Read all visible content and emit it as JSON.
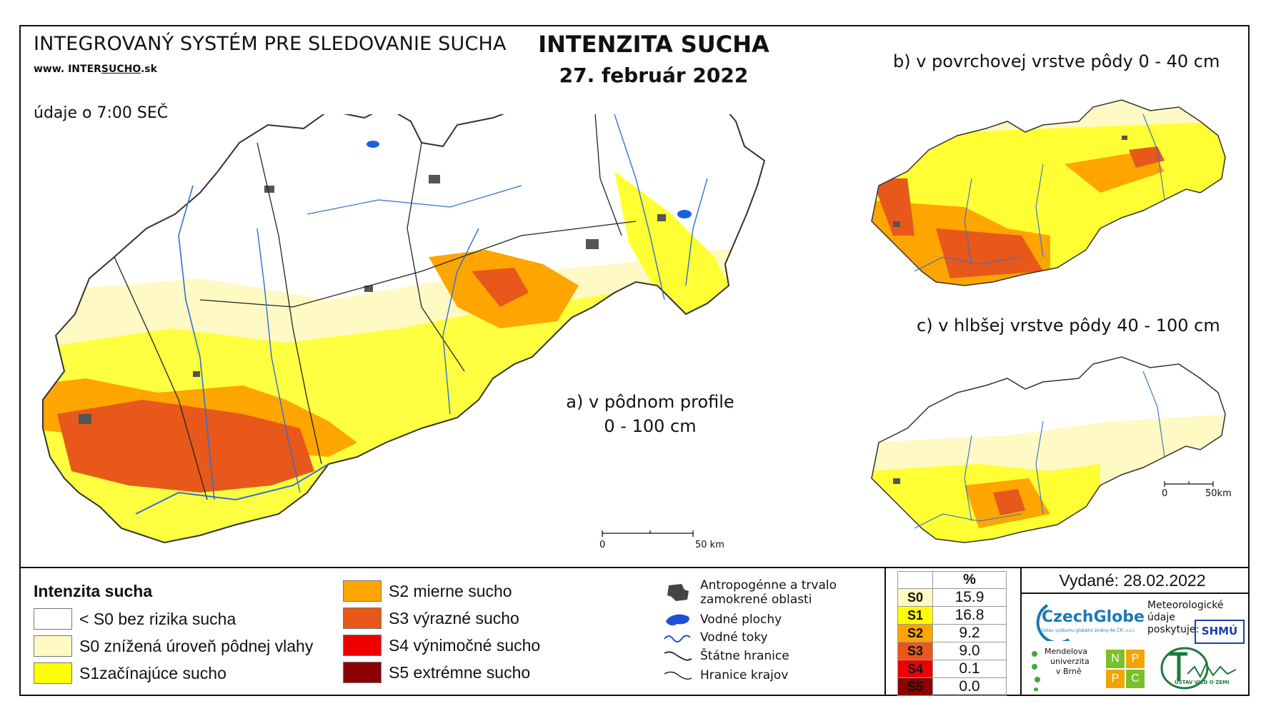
{
  "header": {
    "system_title": "INTEGROVANÝ SYSTÉM PRE SLEDOVANIE SUCHA",
    "url_prefix": "www. INTER",
    "url_mid": "SUCHO",
    "url_suffix": ".sk",
    "time_note": "údaje o 7:00 SEČ",
    "main_title": "INTENZITA SUCHA",
    "date": "27. február 2022"
  },
  "maps": {
    "a_label_line1": "a) v pôdnom profile",
    "a_label_line2": "0 - 100 cm",
    "b_label": "b) v povrchovej vrstve pôdy 0 - 40 cm",
    "c_label": "c) v hlbšej vrstve pôdy 40 - 100 cm",
    "scale_main_zero": "0",
    "scale_main_end": "50 km",
    "scale_small_zero": "0",
    "scale_small_end": "50km"
  },
  "legend": {
    "title": "Intenzita sucha",
    "items": [
      {
        "label": "< S0 bez rizika sucha",
        "color": "#ffffff"
      },
      {
        "label": "S0 znížená úroveň pôdnej vlahy",
        "color": "#fff9c4"
      },
      {
        "label": "S1začínajúce sucho",
        "color": "#ffff00"
      },
      {
        "label": "S2 mierne sucho",
        "color": "#ffa500"
      },
      {
        "label": "S3 výrazné sucho",
        "color": "#e8581a"
      },
      {
        "label": "S4 výnimočné sucho",
        "color": "#ee0000"
      },
      {
        "label": "S5 extrémne sucho",
        "color": "#8b0000"
      }
    ]
  },
  "symbols": [
    {
      "label_line1": "Antropogénne a trvalo",
      "label_line2": "zamokrené oblasti",
      "icon": "urban-area-icon"
    },
    {
      "label_line1": "Vodné plochy",
      "icon": "water-body-icon"
    },
    {
      "label_line1": "Vodné toky",
      "icon": "river-icon"
    },
    {
      "label_line1": "Štátne hranice",
      "icon": "state-border-icon"
    },
    {
      "label_line1": "Hranice krajov",
      "icon": "region-border-icon"
    }
  ],
  "percent_table": {
    "header": "%",
    "rows": [
      {
        "code": "S0",
        "value": "15.9",
        "color": "#fff9c4"
      },
      {
        "code": "S1",
        "value": "16.8",
        "color": "#ffff00"
      },
      {
        "code": "S2",
        "value": "9.2",
        "color": "#ffa500"
      },
      {
        "code": "S3",
        "value": "9.0",
        "color": "#e8581a"
      },
      {
        "code": "S4",
        "value": "0.1",
        "color": "#ee0000"
      },
      {
        "code": "S5",
        "value": "0.0",
        "color": "#8b0000"
      }
    ]
  },
  "issued": "Vydané: 28.02.2022",
  "logos": {
    "czechglobe": "CzechGlobe",
    "czechglobe_sub": "Ústav výzkumu globální změny AV ČR, v.v.i.",
    "provider_line1": "Meteorologické",
    "provider_line2": "údaje",
    "provider_line3": "poskytuje:",
    "shmu": "SHMÚ",
    "mendel_line1": "Mendelova",
    "mendel_line2": "univerzita",
    "mendel_line3": "v Brně",
    "nppc": [
      "N",
      "P",
      "P",
      "C"
    ],
    "uvz": "ÚSTAV VIED O ZEMI"
  }
}
